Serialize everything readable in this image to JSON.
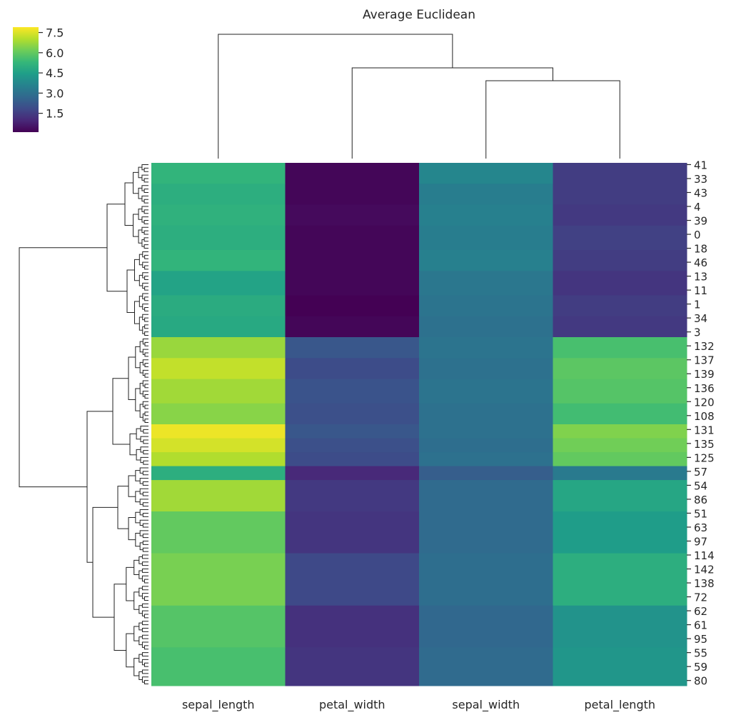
{
  "chart_data": {
    "type": "heatmap",
    "title": "Average Euclidean",
    "columns": [
      "sepal_length",
      "petal_width",
      "sepal_width",
      "petal_length"
    ],
    "row_tick_labels": [
      "41",
      "33",
      "43",
      "4",
      "39",
      "0",
      "18",
      "46",
      "13",
      "11",
      "1",
      "34",
      "3",
      "132",
      "137",
      "139",
      "136",
      "120",
      "108",
      "131",
      "135",
      "125",
      "57",
      "54",
      "86",
      "51",
      "63",
      "97",
      "114",
      "142",
      "138",
      "72",
      "62",
      "61",
      "95",
      "55",
      "59",
      "80"
    ],
    "row_count": 150,
    "row_segments": [
      {
        "n": 6,
        "v": [
          5.2,
          0.2,
          3.7,
          1.5
        ]
      },
      {
        "n": 6,
        "v": [
          5.0,
          0.2,
          3.4,
          1.5
        ]
      },
      {
        "n": 6,
        "v": [
          5.1,
          0.3,
          3.5,
          1.4
        ]
      },
      {
        "n": 7,
        "v": [
          5.0,
          0.2,
          3.4,
          1.6
        ]
      },
      {
        "n": 6,
        "v": [
          5.2,
          0.2,
          3.5,
          1.5
        ]
      },
      {
        "n": 7,
        "v": [
          4.6,
          0.2,
          3.2,
          1.3
        ]
      },
      {
        "n": 6,
        "v": [
          4.9,
          0.1,
          3.1,
          1.5
        ]
      },
      {
        "n": 6,
        "v": [
          4.8,
          0.2,
          3.0,
          1.4
        ]
      },
      {
        "n": 6,
        "v": [
          6.7,
          2.2,
          3.1,
          5.6
        ]
      },
      {
        "n": 6,
        "v": [
          7.2,
          1.9,
          3.0,
          5.9
        ]
      },
      {
        "n": 7,
        "v": [
          6.8,
          2.1,
          3.1,
          5.8
        ]
      },
      {
        "n": 6,
        "v": [
          6.5,
          2.0,
          3.0,
          5.5
        ]
      },
      {
        "n": 4,
        "v": [
          7.7,
          2.2,
          3.0,
          6.4
        ]
      },
      {
        "n": 4,
        "v": [
          7.4,
          2.0,
          2.9,
          6.2
        ]
      },
      {
        "n": 4,
        "v": [
          7.0,
          1.9,
          3.0,
          6.0
        ]
      },
      {
        "n": 4,
        "v": [
          5.0,
          1.0,
          2.4,
          3.3
        ]
      },
      {
        "n": 9,
        "v": [
          6.8,
          1.4,
          2.8,
          4.7
        ]
      },
      {
        "n": 12,
        "v": [
          6.0,
          1.3,
          2.8,
          4.4
        ]
      },
      {
        "n": 15,
        "v": [
          6.3,
          1.8,
          2.9,
          5.0
        ]
      },
      {
        "n": 12,
        "v": [
          5.8,
          1.2,
          2.7,
          4.1
        ]
      },
      {
        "n": 11,
        "v": [
          5.6,
          1.3,
          2.8,
          4.2
        ]
      }
    ],
    "colormap": "viridis",
    "vlim": [
      0.1,
      7.9
    ],
    "colorbar_ticks": [
      "1.5",
      "3.0",
      "4.5",
      "6.0",
      "7.5"
    ],
    "colorbar_tick_values": [
      1.5,
      3.0,
      4.5,
      6.0,
      7.5
    ]
  }
}
